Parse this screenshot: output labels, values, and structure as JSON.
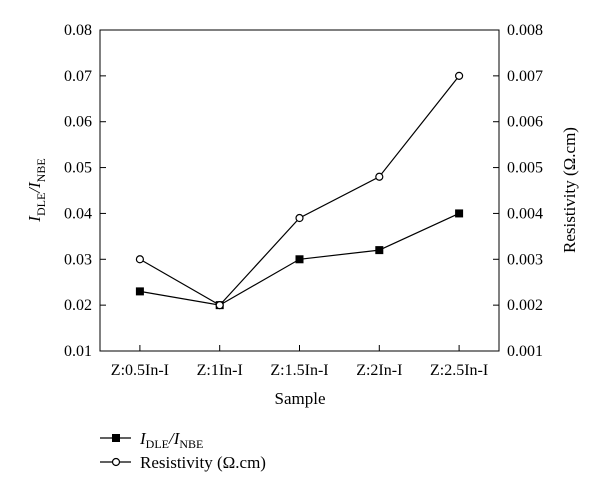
{
  "chart_data": {
    "type": "line",
    "categories": [
      "Z:0.5In-I",
      "Z:1In-I",
      "Z:1.5In-I",
      "Z:2In-I",
      "Z:2.5In-I"
    ],
    "xlabel": "Sample",
    "ylabel_left": {
      "main": "I",
      "sub1": "DLE",
      "slash": "/I",
      "sub2": "NBE"
    },
    "ylabel_right": "Resistivity (Ω.cm)",
    "ylim_left": [
      0.01,
      0.08
    ],
    "ylim_right": [
      0.001,
      0.008
    ],
    "yticks_left": [
      "0.01",
      "0.02",
      "0.03",
      "0.04",
      "0.05",
      "0.06",
      "0.07",
      "0.08"
    ],
    "yticks_right": [
      "0.001",
      "0.002",
      "0.003",
      "0.004",
      "0.005",
      "0.006",
      "0.007",
      "0.008"
    ],
    "grid": false,
    "legend_position": "bottom-left",
    "series": [
      {
        "name": "IDLE/INBE",
        "axis": "left",
        "marker": "filled-square",
        "values": [
          0.023,
          0.02,
          0.03,
          0.032,
          0.04
        ]
      },
      {
        "name": "Resistivity (Ω.cm)",
        "axis": "right",
        "marker": "open-circle",
        "values": [
          0.003,
          0.002,
          0.0039,
          0.0048,
          0.007
        ]
      }
    ]
  },
  "legend": {
    "item1": {
      "main": "I",
      "sub1": "DLE",
      "slash": "/I",
      "sub2": "NBE"
    },
    "item2": "Resistivity (Ω.cm)"
  }
}
